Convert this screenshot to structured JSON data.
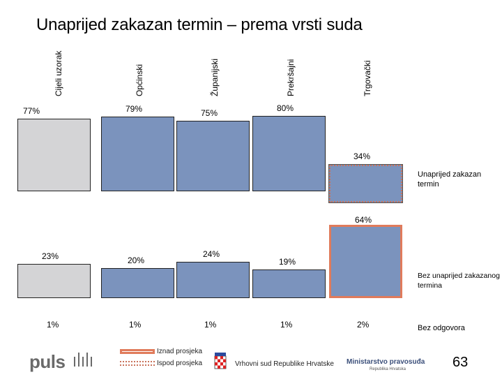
{
  "title": "Unaprijed zakazan termin – prema vrsti suda",
  "chart_data": {
    "type": "bar",
    "categories": [
      "Cijeli uzorak",
      "Općinski",
      "Županijski",
      "Prekršajni",
      "Trgovački"
    ],
    "series": [
      {
        "name": "Unaprijed zakazan termin",
        "values": [
          77,
          79,
          75,
          80,
          34
        ],
        "labels": [
          "77%",
          "79%",
          "75%",
          "80%",
          "34%"
        ]
      },
      {
        "name": "Bez unaprijed zakazanog termina",
        "values": [
          23,
          20,
          24,
          19,
          64
        ],
        "labels": [
          "23%",
          "20%",
          "24%",
          "19%",
          "64%"
        ]
      },
      {
        "name": "Bez odgovora",
        "values": [
          1,
          1,
          1,
          1,
          2
        ],
        "labels": [
          "1%",
          "1%",
          "1%",
          "1%",
          "2%"
        ]
      }
    ]
  },
  "side_labels": {
    "scheduled": "Unaprijed zakazan termin",
    "unscheduled": "Bez unaprijed zakazanog termina",
    "no_answer": "Bez odgovora"
  },
  "legend": {
    "above": "Iznad prosjeka",
    "below": "Ispod prosjeka"
  },
  "footer": {
    "brand": "puls",
    "court": "Vrhovni sud Republike Hrvatske",
    "ministry": "Ministarstvo pravosuđa",
    "ministry_sub": "Republika Hrvatska",
    "page": "63"
  },
  "colors": {
    "total": "#d4d4d6",
    "courts": "#7b93bd",
    "above_avg_border": "#e07b5b",
    "below_avg_border": "#c9725a"
  }
}
